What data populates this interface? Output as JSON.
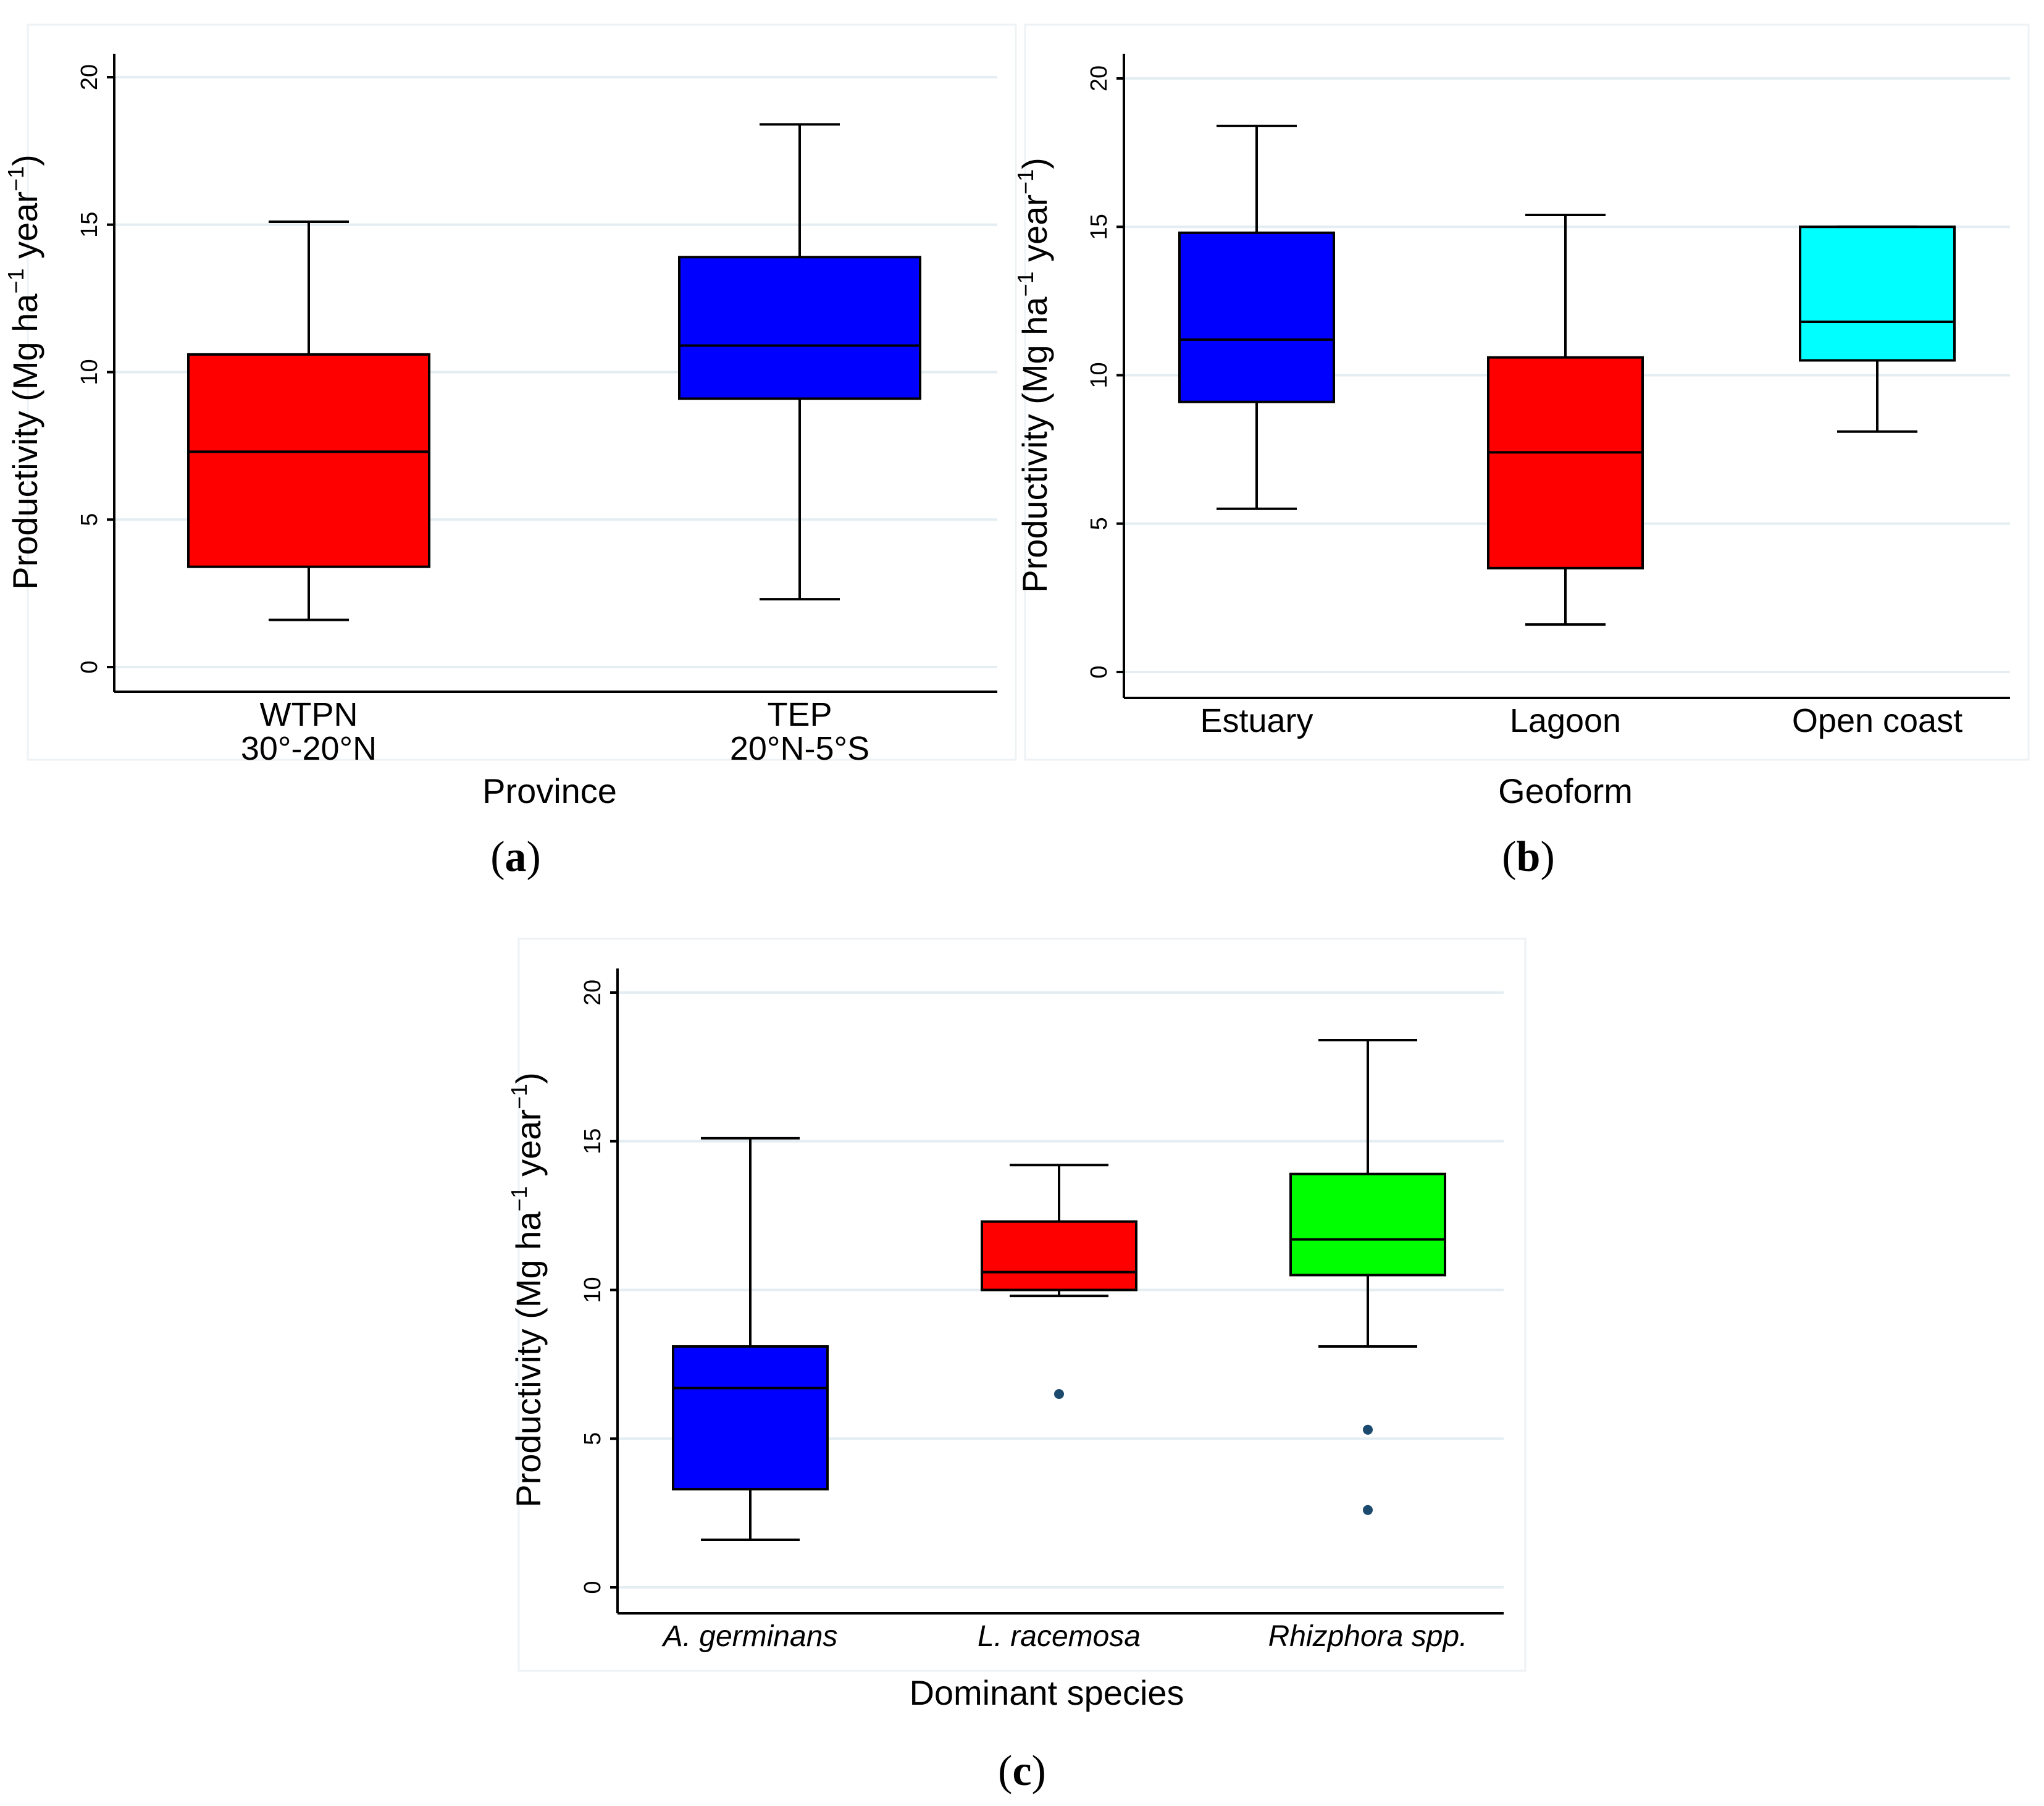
{
  "chart_data": [
    {
      "type": "box",
      "panel": "(a)",
      "panel_letter": "a",
      "xlabel": "Province",
      "ylabel": "Productivity (Mg ha",
      "ylabel_sup1": "−1",
      "ylabel_mid": " year",
      "ylabel_sup2": "−1",
      "ylabel_end": ")",
      "ylim": [
        0,
        20
      ],
      "yticks": [
        0,
        5,
        10,
        15,
        20
      ],
      "grid": true,
      "categories": [
        {
          "line1": "WTPN",
          "line2": "30°-20°N",
          "italic": false,
          "color": "#ff0000",
          "min": 1.6,
          "q1": 3.4,
          "median": 7.3,
          "q3": 10.6,
          "max": 15.1,
          "outliers": []
        },
        {
          "line1": "TEP",
          "line2": "20°N-5°S",
          "italic": false,
          "color": "#0000ff",
          "min": 2.3,
          "q1": 9.1,
          "median": 10.9,
          "q3": 13.9,
          "max": 18.4,
          "outliers": []
        }
      ]
    },
    {
      "type": "box",
      "panel": "(b)",
      "panel_letter": "b",
      "xlabel": "Geoform",
      "ylabel": "Productivity (Mg ha",
      "ylabel_sup1": "−1",
      "ylabel_mid": " year",
      "ylabel_sup2": "−1",
      "ylabel_end": ")",
      "ylim": [
        0,
        20
      ],
      "yticks": [
        0,
        5,
        10,
        15,
        20
      ],
      "grid": true,
      "categories": [
        {
          "line1": "Estuary",
          "line2": "",
          "italic": false,
          "color": "#0000ff",
          "min": 5.5,
          "q1": 9.1,
          "median": 11.2,
          "q3": 14.8,
          "max": 18.4,
          "outliers": []
        },
        {
          "line1": "Lagoon",
          "line2": "",
          "italic": false,
          "color": "#ff0000",
          "min": 1.6,
          "q1": 3.5,
          "median": 7.4,
          "q3": 10.6,
          "max": 15.4,
          "outliers": []
        },
        {
          "line1": "Open coast",
          "line2": "",
          "italic": false,
          "color": "#00ffff",
          "min": 8.1,
          "q1": 10.5,
          "median": 11.8,
          "q3": 15.0,
          "max": 15.0,
          "outliers": []
        }
      ]
    },
    {
      "type": "box",
      "panel": "(c)",
      "panel_letter": "c",
      "xlabel": "Dominant species",
      "ylabel": "Productivity (Mg ha",
      "ylabel_sup1": "−1",
      "ylabel_mid": " year",
      "ylabel_sup2": "−1",
      "ylabel_end": ")",
      "ylim": [
        0,
        20
      ],
      "yticks": [
        0,
        5,
        10,
        15,
        20
      ],
      "grid": true,
      "categories": [
        {
          "line1": "A. germinans",
          "line2": "",
          "italic": true,
          "color": "#0000ff",
          "min": 1.6,
          "q1": 3.3,
          "median": 6.7,
          "q3": 8.1,
          "max": 15.1,
          "outliers": []
        },
        {
          "line1": "L. racemosa",
          "line2": "",
          "italic": true,
          "color": "#ff0000",
          "min": 9.8,
          "q1": 10.0,
          "median": 10.6,
          "q3": 12.3,
          "max": 14.2,
          "outliers": [
            6.5
          ]
        },
        {
          "line1": "Rhizphora spp.",
          "line2": "",
          "italic": true,
          "color": "#00ff00",
          "min": 8.1,
          "q1": 10.5,
          "median": 11.7,
          "q3": 13.9,
          "max": 18.4,
          "outliers": [
            5.3,
            2.6
          ]
        }
      ]
    }
  ]
}
